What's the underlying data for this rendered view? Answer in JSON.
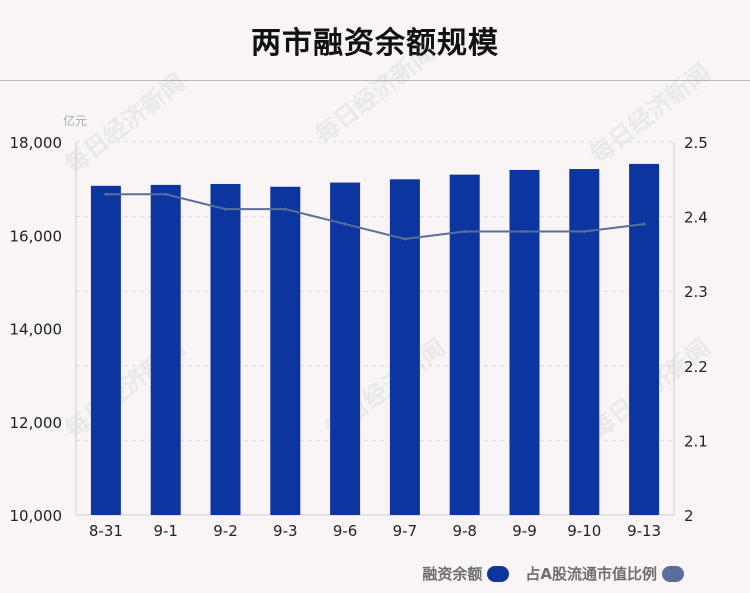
{
  "title": "两市融资余额规模",
  "watermark": "每日经济新闻",
  "chart_data": {
    "type": "bar",
    "categories": [
      "8-31",
      "9-1",
      "9-2",
      "9-3",
      "9-6",
      "9-7",
      "9-8",
      "9-9",
      "9-10",
      "9-13"
    ],
    "series": [
      {
        "name": "融资余额",
        "type": "bar",
        "axis": "left",
        "color": "#0c35a0",
        "values": [
          17060,
          17080,
          17100,
          17040,
          17130,
          17200,
          17300,
          17400,
          17420,
          17530
        ]
      },
      {
        "name": "占A股流通市值比例",
        "type": "line",
        "axis": "right",
        "color": "#5a6e9a",
        "values": [
          2.43,
          2.43,
          2.41,
          2.41,
          2.39,
          2.37,
          2.38,
          2.38,
          2.38,
          2.39
        ]
      }
    ],
    "y_left": {
      "unit": "亿元",
      "lim": [
        10000,
        18000
      ],
      "ticks": [
        10000,
        12000,
        14000,
        16000,
        18000
      ],
      "tick_labels": [
        "10,000",
        "12,000",
        "14,000",
        "16,000",
        "18,000"
      ]
    },
    "y_right": {
      "lim": [
        2,
        2.5
      ],
      "ticks": [
        2,
        2.1,
        2.2,
        2.3,
        2.4,
        2.5
      ],
      "tick_labels": [
        "2",
        "2.1",
        "2.2",
        "2.3",
        "2.4",
        "2.5"
      ]
    },
    "grid": "horizontal-dashed",
    "legend_position": "bottom-right"
  }
}
